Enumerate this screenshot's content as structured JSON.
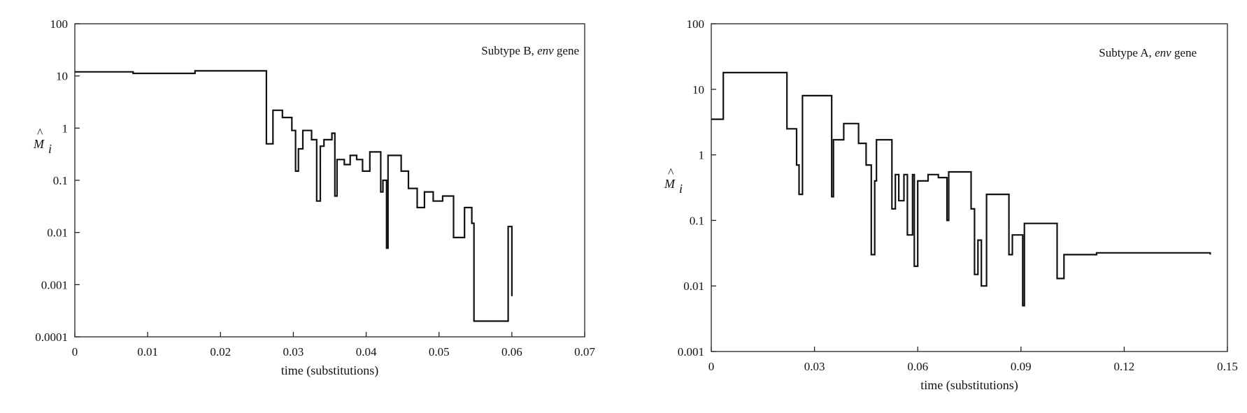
{
  "chart_data": [
    {
      "type": "line",
      "step": true,
      "annotation": {
        "prefix": "Subtype B, ",
        "italic": "env",
        "suffix": " gene"
      },
      "xlabel": "time (substitutions)",
      "ylabel": {
        "base": "M",
        "hat": "^",
        "subscript": "i"
      },
      "yscale": "log",
      "xlim": [
        0,
        0.07
      ],
      "ylim": [
        0.0001,
        100
      ],
      "xticks": [
        0,
        0.01,
        0.02,
        0.03,
        0.04,
        0.05,
        0.06,
        0.07
      ],
      "xtick_labels": [
        "0",
        "0.01",
        "0.02",
        "0.03",
        "0.04",
        "0.05",
        "0.06",
        "0.07"
      ],
      "yticks": [
        0.0001,
        0.001,
        0.01,
        0.1,
        1,
        10,
        100
      ],
      "ytick_labels": [
        "0.0001",
        "0.001",
        "0.01",
        "0.1",
        "1",
        "10",
        "100"
      ],
      "grid": false,
      "series": [
        {
          "x": [
            0,
            0.008,
            0.0165,
            0.026,
            0.0263,
            0.0272,
            0.0285,
            0.0298,
            0.0303,
            0.0307,
            0.0313,
            0.0325,
            0.0332,
            0.0337,
            0.0342,
            0.0353,
            0.0357,
            0.036,
            0.037,
            0.0378,
            0.0387,
            0.0395,
            0.0405,
            0.042,
            0.0423,
            0.0428,
            0.043,
            0.0448,
            0.0458,
            0.047,
            0.048,
            0.0492,
            0.0505,
            0.052,
            0.0535,
            0.0545,
            0.0548,
            0.0595,
            0.06
          ],
          "y": [
            12,
            11.2,
            12.5,
            12.5,
            0.5,
            2.2,
            1.6,
            0.9,
            0.15,
            0.4,
            0.9,
            0.6,
            0.04,
            0.45,
            0.6,
            0.8,
            0.05,
            0.25,
            0.2,
            0.3,
            0.25,
            0.15,
            0.35,
            0.06,
            0.1,
            0.005,
            0.3,
            0.15,
            0.07,
            0.03,
            0.06,
            0.04,
            0.05,
            0.008,
            0.03,
            0.015,
            0.0002,
            0.013,
            0.0006
          ]
        }
      ]
    },
    {
      "type": "line",
      "step": true,
      "annotation": {
        "prefix": "Subtype A, ",
        "italic": "env",
        "suffix": " gene"
      },
      "xlabel": "time (substitutions)",
      "ylabel": {
        "base": "M",
        "hat": "^",
        "subscript": "i"
      },
      "yscale": "log",
      "xlim": [
        0,
        0.15
      ],
      "ylim": [
        0.001,
        100
      ],
      "xticks": [
        0,
        0.03,
        0.06,
        0.09,
        0.12,
        0.15
      ],
      "xtick_labels": [
        "0",
        "0.03",
        "0.06",
        "0.09",
        "0.12",
        "0.15"
      ],
      "yticks": [
        0.001,
        0.01,
        0.1,
        1,
        10,
        100
      ],
      "ytick_labels": [
        "0.001",
        "0.01",
        "0.1",
        "1",
        "10",
        "100"
      ],
      "grid": false,
      "series": [
        {
          "x": [
            0,
            0.0035,
            0.022,
            0.0248,
            0.0255,
            0.0265,
            0.035,
            0.0355,
            0.0385,
            0.0428,
            0.045,
            0.0465,
            0.0475,
            0.048,
            0.0525,
            0.0535,
            0.0545,
            0.056,
            0.057,
            0.0585,
            0.059,
            0.06,
            0.063,
            0.066,
            0.0685,
            0.069,
            0.0755,
            0.0765,
            0.0775,
            0.0785,
            0.08,
            0.0865,
            0.0875,
            0.0905,
            0.091,
            0.1005,
            0.1025,
            0.112,
            0.145
          ],
          "y": [
            3.5,
            18,
            2.5,
            0.7,
            0.25,
            8,
            0.23,
            1.7,
            3,
            1.5,
            0.7,
            0.03,
            0.4,
            1.7,
            0.15,
            0.5,
            0.2,
            0.5,
            0.06,
            0.5,
            0.02,
            0.4,
            0.5,
            0.45,
            0.1,
            0.55,
            0.15,
            0.015,
            0.05,
            0.01,
            0.25,
            0.03,
            0.06,
            0.005,
            0.09,
            0.013,
            0.03,
            0.032,
            0.03
          ]
        }
      ]
    }
  ]
}
